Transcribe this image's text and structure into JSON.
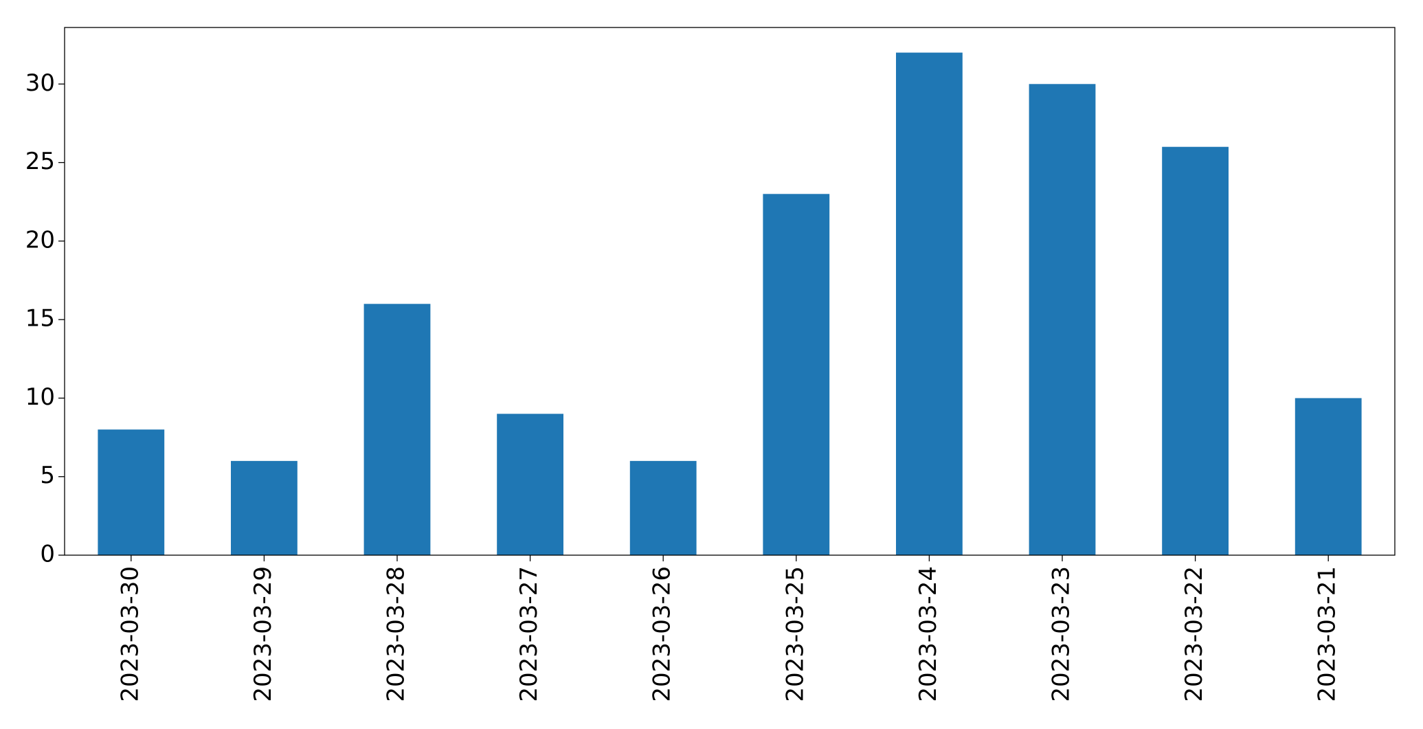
{
  "chart_data": {
    "type": "bar",
    "categories": [
      "2023-03-30",
      "2023-03-29",
      "2023-03-28",
      "2023-03-27",
      "2023-03-26",
      "2023-03-25",
      "2023-03-24",
      "2023-03-23",
      "2023-03-22",
      "2023-03-21"
    ],
    "values": [
      8,
      6,
      16,
      9,
      6,
      23,
      32,
      30,
      26,
      10
    ],
    "color": "#1f77b4",
    "ylim": [
      0,
      33.6
    ],
    "yticks": [
      0,
      5,
      10,
      15,
      20,
      25,
      30
    ],
    "grid": false
  }
}
